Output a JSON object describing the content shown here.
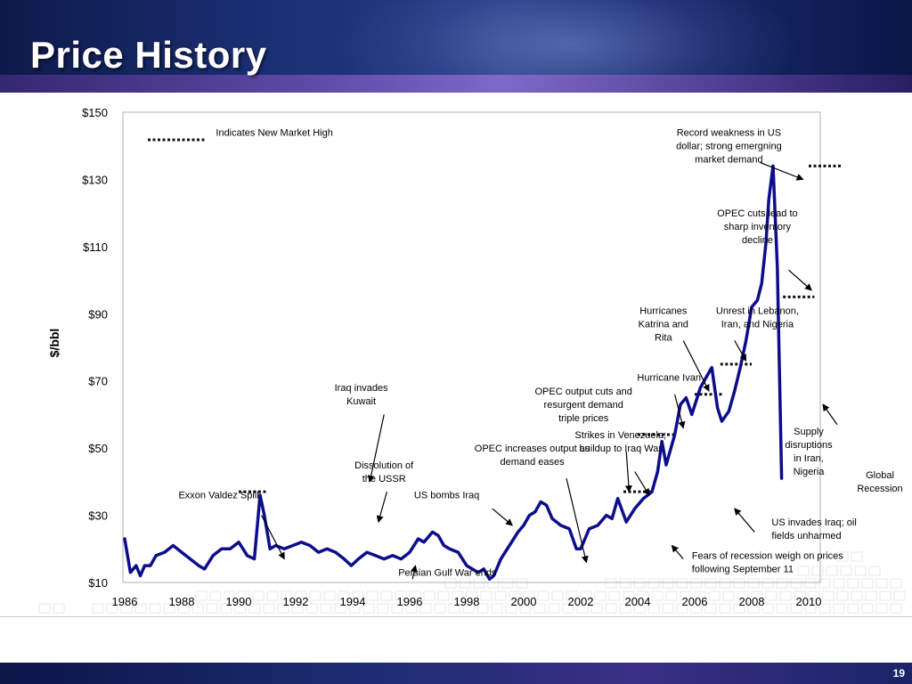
{
  "slide": {
    "title": "Price History",
    "slide_number": "19"
  },
  "colors": {
    "series": "#0d0d8c",
    "header_dark": "#0d1a4a",
    "accent": "#6b4fb0"
  },
  "chart_data": {
    "type": "line",
    "title": "",
    "xlabel": "",
    "ylabel": "$/bbl",
    "xlim": [
      1986,
      2010
    ],
    "ylim": [
      10,
      150
    ],
    "x_ticks": [
      "1986",
      "1988",
      "1990",
      "1992",
      "1994",
      "1996",
      "1998",
      "2000",
      "2002",
      "2004",
      "2006",
      "2008",
      "2010"
    ],
    "y_ticks": [
      "$10",
      "$30",
      "$50",
      "$70",
      "$90",
      "$110",
      "$130",
      "$150"
    ],
    "grid": false,
    "legend": {
      "placement": "top-left",
      "label": "Indicates New Market High"
    },
    "series": [
      {
        "name": "",
        "x": [
          1986.0,
          1986.2,
          1986.4,
          1986.55,
          1986.7,
          1986.9,
          1987.1,
          1987.4,
          1987.7,
          1988.0,
          1988.3,
          1988.6,
          1988.8,
          1989.1,
          1989.4,
          1989.7,
          1990.0,
          1990.3,
          1990.55,
          1990.75,
          1990.9,
          1991.1,
          1991.3,
          1991.6,
          1991.9,
          1992.2,
          1992.5,
          1992.8,
          1993.1,
          1993.4,
          1993.7,
          1993.95,
          1994.2,
          1994.5,
          1994.8,
          1995.1,
          1995.4,
          1995.7,
          1996.0,
          1996.3,
          1996.5,
          1996.8,
          1997.0,
          1997.2,
          1997.4,
          1997.7,
          1998.0,
          1998.2,
          1998.4,
          1998.6,
          1998.8,
          1998.95,
          1999.2,
          1999.5,
          1999.8,
          2000.0,
          2000.2,
          2000.4,
          2000.6,
          2000.8,
          2001.0,
          2001.3,
          2001.6,
          2001.85,
          2002.0,
          2002.3,
          2002.6,
          2002.9,
          2003.1,
          2003.3,
          2003.6,
          2003.9,
          2004.2,
          2004.5,
          2004.7,
          2004.85,
          2005.0,
          2005.3,
          2005.5,
          2005.7,
          2005.9,
          2006.2,
          2006.4,
          2006.6,
          2006.8,
          2006.95,
          2007.2,
          2007.4,
          2007.6,
          2007.8,
          2008.0,
          2008.2,
          2008.35,
          2008.5,
          2008.6,
          2008.75,
          2008.9,
          2009.05
        ],
        "y": [
          23,
          13,
          15,
          12,
          15,
          15,
          18,
          19,
          21,
          19,
          17,
          15,
          14,
          18,
          20,
          20,
          22,
          18,
          17,
          36,
          30,
          20,
          21,
          20,
          21,
          22,
          21,
          19,
          20,
          19,
          17,
          15,
          17,
          19,
          18,
          17,
          18,
          17,
          19,
          23,
          22,
          25,
          24,
          21,
          20,
          19,
          15,
          14,
          13,
          14,
          11,
          12,
          17,
          21,
          25,
          27,
          30,
          31,
          34,
          33,
          29,
          27,
          26,
          20,
          20,
          26,
          27,
          30,
          29,
          35,
          28,
          32,
          35,
          37,
          43,
          52,
          45,
          54,
          63,
          65,
          60,
          68,
          71,
          74,
          62,
          58,
          61,
          67,
          74,
          82,
          92,
          94,
          99,
          111,
          124,
          134,
          104,
          41
        ]
      }
    ],
    "new_high_markers": [
      {
        "x0": 1990.0,
        "x1": 1991.0,
        "y": 37
      },
      {
        "x0": 2003.5,
        "x1": 2004.5,
        "y": 37
      },
      {
        "x0": 2004.0,
        "x1": 2005.3,
        "y": 54
      },
      {
        "x0": 2006.0,
        "x1": 2007.0,
        "y": 66
      },
      {
        "x0": 2006.9,
        "x1": 2008.0,
        "y": 75
      },
      {
        "x0": 2009.1,
        "x1": 2010.2,
        "y": 95
      },
      {
        "x0": 2010.0,
        "x1": 2011.2,
        "y": 134
      }
    ],
    "annotations": [
      {
        "lines": [
          "Indicates New Market High"
        ],
        "text_x": 1989.2,
        "text_y": 143,
        "anchor": "start"
      },
      {
        "lines": [
          "Record weakness in US",
          "dollar; strong emergning",
          "market demand"
        ],
        "text_x": 2007.2,
        "text_y": 143,
        "anchor": "middle",
        "arrow": [
          2008.3,
          135,
          2009.8,
          130
        ]
      },
      {
        "lines": [
          "OPEC cuts lead to",
          "sharp inventory",
          "decline"
        ],
        "text_x": 2008.2,
        "text_y": 119,
        "anchor": "middle",
        "arrow": [
          2009.3,
          103,
          2010.1,
          97
        ]
      },
      {
        "lines": [
          "Hurricanes",
          "Katrina and",
          "Rita"
        ],
        "text_x": 2004.9,
        "text_y": 90,
        "anchor": "middle",
        "arrow": [
          2005.6,
          82,
          2006.5,
          67
        ]
      },
      {
        "lines": [
          "Unrest in Lebanon,",
          "Iran, and Nigeria"
        ],
        "text_x": 2008.2,
        "text_y": 90,
        "anchor": "middle",
        "arrow": [
          2007.4,
          82,
          2007.8,
          76
        ]
      },
      {
        "lines": [
          "Hurricane Ivan"
        ],
        "text_x": 2005.1,
        "text_y": 70,
        "anchor": "middle",
        "arrow": [
          2005.3,
          66,
          2005.6,
          56
        ]
      },
      {
        "lines": [
          "OPEC output cuts and",
          "resurgent demand",
          "triple prices"
        ],
        "text_x": 2002.1,
        "text_y": 66,
        "anchor": "middle",
        "arrow": [
          2003.6,
          49,
          2003.7,
          37
        ]
      },
      {
        "lines": [
          "Strikes in Venezuela;",
          "buildup to Iraq War"
        ],
        "text_x": 2003.4,
        "text_y": 53,
        "anchor": "middle",
        "arrow": [
          2003.9,
          43,
          2004.4,
          36
        ]
      },
      {
        "lines": [
          "OPEC increases output as",
          "demand eases"
        ],
        "text_x": 2000.3,
        "text_y": 49,
        "anchor": "middle",
        "arrow": [
          2001.5,
          41,
          2002.2,
          16
        ]
      },
      {
        "lines": [
          "Iraq invades",
          "Kuwait"
        ],
        "text_x": 1994.3,
        "text_y": 67,
        "anchor": "middle",
        "arrow": [
          1995.1,
          60,
          1994.6,
          40
        ]
      },
      {
        "lines": [
          "Dissolution of",
          "the USSR"
        ],
        "text_x": 1995.1,
        "text_y": 44,
        "anchor": "middle",
        "arrow": [
          1995.2,
          37,
          1994.9,
          28
        ]
      },
      {
        "lines": [
          "Exxon Valdez Spill"
        ],
        "text_x": 1989.3,
        "text_y": 35,
        "anchor": "middle",
        "arrow": [
          1990.8,
          30,
          1991.6,
          17
        ]
      },
      {
        "lines": [
          "US bombs Iraq"
        ],
        "text_x": 1997.3,
        "text_y": 35,
        "anchor": "middle",
        "arrow": [
          1998.9,
          32,
          1999.6,
          27
        ]
      },
      {
        "lines": [
          "Supply",
          "disruptions",
          "in Iran,",
          "Nigeria"
        ],
        "text_x": 2010.0,
        "text_y": 54,
        "anchor": "middle",
        "arrow": [
          2011.0,
          57,
          2010.5,
          63
        ]
      },
      {
        "lines": [
          "Global",
          "Recession"
        ],
        "text_x": 2012.5,
        "text_y": 41,
        "anchor": "middle"
      },
      {
        "lines": [
          "US invades Iraq; oil",
          "fields unharmed"
        ],
        "text_x": 2008.7,
        "text_y": 27,
        "anchor": "start",
        "arrow": [
          2008.1,
          25,
          2007.4,
          32
        ]
      },
      {
        "lines": [
          "Fears of recession weigh on prices",
          "following September 11"
        ],
        "text_x": 2005.9,
        "text_y": 17,
        "anchor": "start",
        "arrow": [
          2005.6,
          17,
          2005.2,
          21
        ]
      },
      {
        "lines": [
          "Persian Gulf War ends"
        ],
        "text_x": 1995.6,
        "text_y": 12,
        "anchor": "start",
        "arrow": [
          1996.1,
          11,
          1996.2,
          15
        ]
      }
    ]
  }
}
